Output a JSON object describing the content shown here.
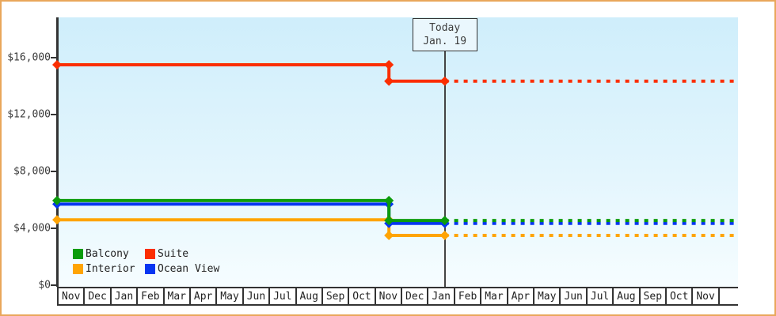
{
  "colors": {
    "frame_border": "#e9a75b",
    "axis": "#333333",
    "today_line": "#444444",
    "plot_background_top": "#cfeefb",
    "plot_background_bottom": "#f6fdff"
  },
  "chart_data": {
    "type": "line",
    "title": "",
    "xlabel": "",
    "ylabel": "",
    "grid": false,
    "legend_position": "bottom-left",
    "ylim": [
      0,
      18800
    ],
    "y_axis": {
      "ticks": [
        {
          "label": "$0",
          "value": 0
        },
        {
          "label": "$4,000",
          "value": 4000
        },
        {
          "label": "$8,000",
          "value": 8000
        },
        {
          "label": "$12,000",
          "value": 12000
        },
        {
          "label": "$16,000",
          "value": 16000
        }
      ]
    },
    "x_axis": {
      "months": [
        "Nov",
        "Dec",
        "Jan",
        "Feb",
        "Mar",
        "Apr",
        "May",
        "Jun",
        "Jul",
        "Aug",
        "Sep",
        "Oct",
        "Nov",
        "Dec",
        "Jan",
        "Feb",
        "Mar",
        "Apr",
        "May",
        "Jun",
        "Jul",
        "Aug",
        "Sep",
        "Oct",
        "Nov"
      ]
    },
    "today_marker": {
      "line1": "Today",
      "line2": "Jan. 19",
      "p": 14.66
    },
    "series": [
      {
        "name": "Interior",
        "color": "#ffa404",
        "points": [
          {
            "p": 0,
            "value": 4600
          },
          {
            "p": 12.55,
            "value": 4600
          },
          {
            "p": 12.55,
            "value": 3500
          },
          {
            "p": 14.66,
            "value": 3500
          }
        ],
        "forecast": {
          "end_p": 25.75,
          "value": 3500
        }
      },
      {
        "name": "Ocean View",
        "color": "#0636f2",
        "points": [
          {
            "p": 0,
            "value": 5700
          },
          {
            "p": 12.55,
            "value": 5700
          },
          {
            "p": 12.55,
            "value": 4350
          },
          {
            "p": 14.66,
            "value": 4350
          }
        ],
        "forecast": {
          "end_p": 25.75,
          "value": 4350
        }
      },
      {
        "name": "Balcony",
        "color": "#0c9c0c",
        "points": [
          {
            "p": 0,
            "value": 5950
          },
          {
            "p": 12.55,
            "value": 5950
          },
          {
            "p": 12.55,
            "value": 4550
          },
          {
            "p": 14.66,
            "value": 4550
          }
        ],
        "forecast": {
          "end_p": 25.75,
          "value": 4550
        }
      },
      {
        "name": "Suite",
        "color": "#fb2e01",
        "points": [
          {
            "p": 0,
            "value": 15500
          },
          {
            "p": 12.55,
            "value": 15500
          },
          {
            "p": 12.55,
            "value": 14350
          },
          {
            "p": 14.66,
            "value": 14350
          }
        ],
        "forecast": {
          "end_p": 25.75,
          "value": 14350
        }
      }
    ],
    "legend": [
      [
        "Balcony",
        "Suite"
      ],
      [
        "Interior",
        "Ocean View"
      ]
    ]
  }
}
